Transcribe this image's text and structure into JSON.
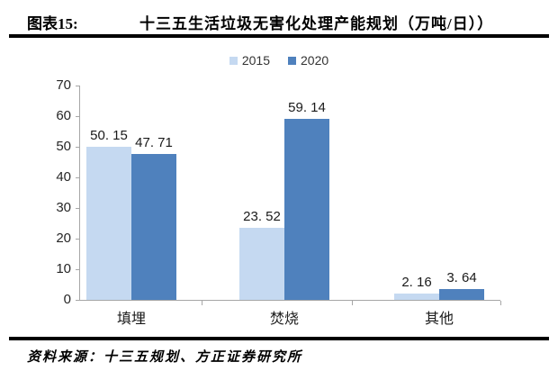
{
  "header": {
    "figure_label": "图表15:",
    "title": "十三五生活垃圾无害化处理产能规划（万吨/日））"
  },
  "source": {
    "text": "资料来源：十三五规划、方正证券研究所"
  },
  "chart_data": {
    "type": "bar",
    "title": "十三五生活垃圾无害化处理产能规划（万吨/日））",
    "categories": [
      "填埋",
      "焚烧",
      "其他"
    ],
    "series": [
      {
        "name": "2015",
        "color": "#c5d9f1",
        "values": [
          50.15,
          23.52,
          2.16
        ],
        "labels": [
          "50. 15",
          "23. 52",
          "2. 16"
        ]
      },
      {
        "name": "2020",
        "color": "#4f81bd",
        "values": [
          47.71,
          59.14,
          3.64
        ],
        "labels": [
          "47. 71",
          "59. 14",
          "3. 64"
        ]
      }
    ],
    "xlabel": "",
    "ylabel": "",
    "ylim": [
      0,
      70
    ],
    "yticks": [
      0,
      10,
      20,
      30,
      40,
      50,
      60,
      70
    ],
    "grid": false,
    "legend_position": "top"
  }
}
